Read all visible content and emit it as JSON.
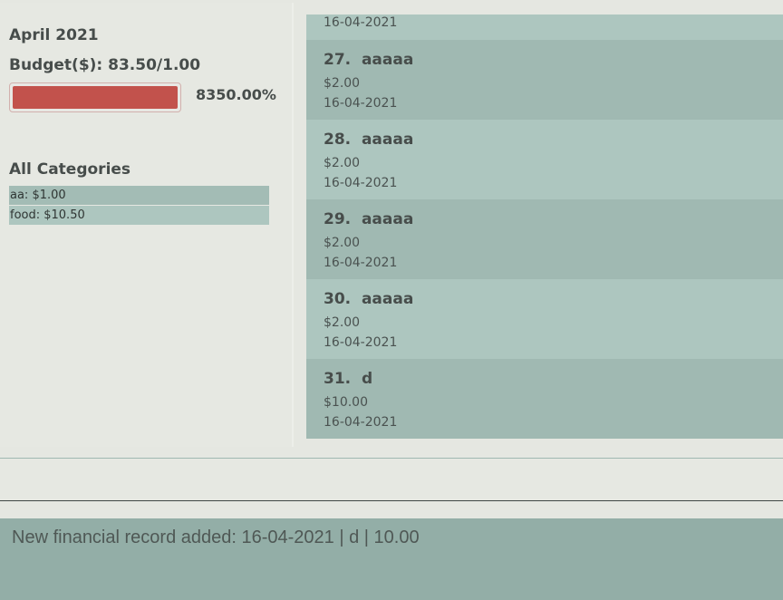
{
  "summary": {
    "month": "April 2021",
    "budget_label": "Budget($): 83.50/1.00",
    "progress_percent_text": "8350.00%",
    "progress_fill_fraction": 1.0,
    "progress_color": "#c2524c"
  },
  "categories": {
    "title": "All Categories",
    "items": [
      {
        "label": "aa: $1.00"
      },
      {
        "label": "food: $10.50"
      }
    ]
  },
  "records": {
    "partial_top_date": "16-04-2021",
    "items": [
      {
        "title": "27.  aaaaa",
        "amount": "$2.00",
        "date": "16-04-2021"
      },
      {
        "title": "28.  aaaaa",
        "amount": "$2.00",
        "date": "16-04-2021"
      },
      {
        "title": "29.  aaaaa",
        "amount": "$2.00",
        "date": "16-04-2021"
      },
      {
        "title": "30.  aaaaa",
        "amount": "$2.00",
        "date": "16-04-2021"
      },
      {
        "title": "31.  d",
        "amount": "$10.00",
        "date": "16-04-2021"
      }
    ]
  },
  "command": {
    "value": "",
    "placeholder": ""
  },
  "result": {
    "message": "New financial record added: 16-04-2021 | d | 10.00"
  }
}
